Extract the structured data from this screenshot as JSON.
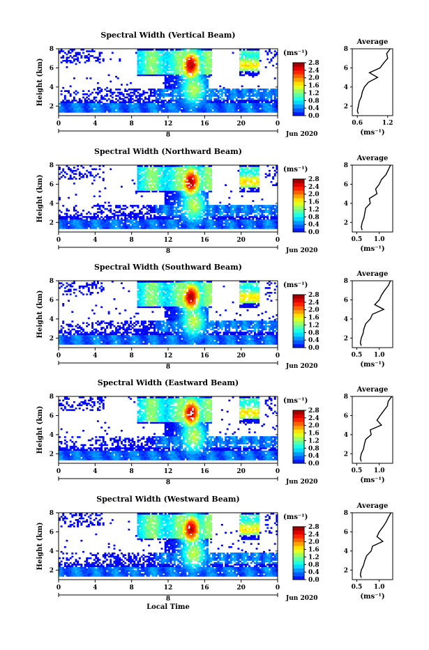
{
  "figure": {
    "xlabel": "Local Time",
    "date_label": "Jun 2020",
    "day_marker": "8",
    "colorbar_unit": "(ms⁻¹)",
    "colorbar_ticks": [
      "0.0",
      "0.4",
      "0.8",
      "1.2",
      "1.6",
      "2.0",
      "2.4",
      "2.8"
    ],
    "average_title": "Average",
    "average_unit": "(ms⁻¹)"
  },
  "chart_data": [
    {
      "type": "heatmap",
      "title": "Spectral Width (Vertical Beam)",
      "ylabel": "Height (km)",
      "xlabel": "",
      "x_ticks": [
        "0",
        "4",
        "8",
        "12",
        "16",
        "20",
        "0"
      ],
      "y_ticks": [
        "2",
        "4",
        "6",
        "8"
      ],
      "xlim": [
        0,
        24
      ],
      "ylim": [
        1,
        8
      ],
      "colorbar": {
        "label": "(ms⁻¹)",
        "range": [
          0,
          2.8
        ],
        "ticks": [
          "0.0",
          "0.4",
          "0.8",
          "1.2",
          "1.6",
          "2.0",
          "2.4",
          "2.8"
        ],
        "colormap": "jet"
      },
      "average_profile": {
        "title": "Average",
        "xlabel": "(ms⁻¹)",
        "x_ticks": [
          "0.6",
          "1.2"
        ],
        "y_ticks": [
          "2",
          "4",
          "6",
          "8"
        ],
        "xlim": [
          0.5,
          1.3
        ],
        "height": [
          1.2,
          1.5,
          2,
          2.5,
          3,
          3.5,
          4,
          4.5,
          5,
          5.5,
          6,
          6.5,
          7,
          7.5,
          8
        ],
        "width": [
          0.62,
          0.6,
          0.62,
          0.64,
          0.68,
          0.7,
          0.74,
          0.82,
          1.0,
          0.84,
          1.05,
          1.12,
          1.2,
          1.18,
          1.25
        ]
      }
    },
    {
      "type": "heatmap",
      "title": "Spectral Width (Northward Beam)",
      "ylabel": "Height (km)",
      "xlabel": "",
      "x_ticks": [
        "0",
        "4",
        "8",
        "12",
        "16",
        "20",
        "0"
      ],
      "y_ticks": [
        "2",
        "4",
        "6",
        "8"
      ],
      "xlim": [
        0,
        24
      ],
      "ylim": [
        1,
        8
      ],
      "colorbar": {
        "label": "(ms⁻¹)",
        "range": [
          0,
          2.8
        ],
        "ticks": [
          "0.0",
          "0.4",
          "0.8",
          "1.2",
          "1.6",
          "2.0",
          "2.4",
          "2.8"
        ],
        "colormap": "jet"
      },
      "average_profile": {
        "title": "Average",
        "xlabel": "(ms⁻¹)",
        "x_ticks": [
          "0.5",
          "1.0"
        ],
        "y_ticks": [
          "2",
          "4",
          "6",
          "8"
        ],
        "xlim": [
          0.4,
          1.3
        ],
        "height": [
          1.2,
          1.5,
          2,
          2.5,
          3,
          3.5,
          4,
          4.5,
          5,
          5.5,
          6,
          6.5,
          7,
          7.5,
          8
        ],
        "width": [
          0.62,
          0.6,
          0.62,
          0.66,
          0.68,
          0.7,
          0.8,
          0.78,
          0.95,
          0.92,
          1.0,
          1.05,
          1.15,
          1.2,
          1.25
        ]
      }
    },
    {
      "type": "heatmap",
      "title": "Spectral Width (Southward Beam)",
      "ylabel": "Height (km)",
      "xlabel": "",
      "x_ticks": [
        "0",
        "4",
        "8",
        "12",
        "16",
        "20",
        "0"
      ],
      "y_ticks": [
        "2",
        "4",
        "6",
        "8"
      ],
      "xlim": [
        0,
        24
      ],
      "ylim": [
        1,
        8
      ],
      "colorbar": {
        "label": "(ms⁻¹)",
        "range": [
          0,
          2.8
        ],
        "ticks": [
          "0.0",
          "0.4",
          "0.8",
          "1.2",
          "1.6",
          "2.0",
          "2.4",
          "2.8"
        ],
        "colormap": "jet"
      },
      "average_profile": {
        "title": "Average",
        "xlabel": "(ms⁻¹)",
        "x_ticks": [
          "0.5",
          "1.0"
        ],
        "y_ticks": [
          "2",
          "4",
          "6",
          "8"
        ],
        "xlim": [
          0.4,
          1.3
        ],
        "height": [
          1.2,
          1.5,
          2,
          2.5,
          3,
          3.5,
          4,
          4.5,
          5,
          5.5,
          6,
          6.5,
          7,
          7.5,
          8
        ],
        "width": [
          0.6,
          0.58,
          0.6,
          0.64,
          0.66,
          0.7,
          0.8,
          0.85,
          1.1,
          0.9,
          1.0,
          1.05,
          1.12,
          1.2,
          1.25
        ]
      }
    },
    {
      "type": "heatmap",
      "title": "Spectral Width (Eastward Beam)",
      "ylabel": "Height (km)",
      "xlabel": "",
      "x_ticks": [
        "0",
        "4",
        "8",
        "12",
        "16",
        "20",
        "0"
      ],
      "y_ticks": [
        "2",
        "4",
        "6",
        "8"
      ],
      "xlim": [
        0,
        24
      ],
      "ylim": [
        1,
        8
      ],
      "colorbar": {
        "label": "(ms⁻¹)",
        "range": [
          0,
          2.8
        ],
        "ticks": [
          "0.0",
          "0.4",
          "0.8",
          "1.2",
          "1.6",
          "2.0",
          "2.4",
          "2.8"
        ],
        "colormap": "jet"
      },
      "average_profile": {
        "title": "Average",
        "xlabel": "(ms⁻¹)",
        "x_ticks": [
          "0.5",
          "1.0"
        ],
        "y_ticks": [
          "2",
          "4",
          "6",
          "8"
        ],
        "xlim": [
          0.4,
          1.3
        ],
        "height": [
          1.2,
          1.5,
          2,
          2.5,
          3,
          3.5,
          4,
          4.5,
          5,
          5.5,
          6,
          6.5,
          7,
          7.5,
          8
        ],
        "width": [
          0.6,
          0.58,
          0.6,
          0.65,
          0.67,
          0.7,
          0.82,
          0.8,
          1.05,
          0.95,
          1.02,
          1.1,
          1.18,
          1.2,
          1.28
        ]
      }
    },
    {
      "type": "heatmap",
      "title": "Spectral Width (Westward Beam)",
      "ylabel": "Height (km)",
      "xlabel": "Local Time",
      "x_ticks": [
        "0",
        "4",
        "8",
        "12",
        "16",
        "20",
        "0"
      ],
      "y_ticks": [
        "2",
        "4",
        "6",
        "8"
      ],
      "xlim": [
        0,
        24
      ],
      "ylim": [
        1,
        8
      ],
      "colorbar": {
        "label": "(ms⁻¹)",
        "range": [
          0,
          2.8
        ],
        "ticks": [
          "0.0",
          "0.4",
          "0.8",
          "1.2",
          "1.6",
          "2.0",
          "2.4",
          "2.8"
        ],
        "colormap": "jet"
      },
      "average_profile": {
        "title": "Average",
        "xlabel": "(ms⁻¹)",
        "x_ticks": [
          "0.5",
          "1.0"
        ],
        "y_ticks": [
          "2",
          "4",
          "6",
          "8"
        ],
        "xlim": [
          0.4,
          1.3
        ],
        "height": [
          1.2,
          1.5,
          2,
          2.5,
          3,
          3.5,
          4,
          4.5,
          5,
          5.5,
          6,
          6.5,
          7,
          7.5,
          8
        ],
        "width": [
          0.6,
          0.58,
          0.6,
          0.65,
          0.68,
          0.72,
          0.82,
          0.85,
          1.08,
          0.95,
          1.0,
          1.08,
          1.15,
          1.2,
          1.26
        ]
      }
    }
  ]
}
